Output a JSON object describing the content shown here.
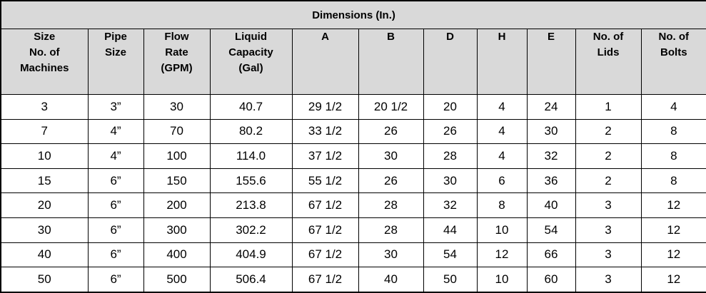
{
  "table": {
    "title": "Dimensions (In.)",
    "columns": [
      "Size\nNo. of\nMachines",
      "Pipe\nSize",
      "Flow\nRate\n(GPM)",
      "Liquid\nCapacity\n(Gal)",
      "A",
      "B",
      "D",
      "H",
      "E",
      "No. of\nLids",
      "No. of\nBolts"
    ],
    "rows": [
      [
        "3",
        "3”",
        "30",
        "40.7",
        "29 1/2",
        "20 1/2",
        "20",
        "4",
        "24",
        "1",
        "4"
      ],
      [
        "7",
        "4”",
        "70",
        "80.2",
        "33 1/2",
        "26",
        "26",
        "4",
        "30",
        "2",
        "8"
      ],
      [
        "10",
        "4”",
        "100",
        "114.0",
        "37 1/2",
        "30",
        "28",
        "4",
        "32",
        "2",
        "8"
      ],
      [
        "15",
        "6”",
        "150",
        "155.6",
        "55 1/2",
        "26",
        "30",
        "6",
        "36",
        "2",
        "8"
      ],
      [
        "20",
        "6”",
        "200",
        "213.8",
        "67 1/2",
        "28",
        "32",
        "8",
        "40",
        "3",
        "12"
      ],
      [
        "30",
        "6”",
        "300",
        "302.2",
        "67 1/2",
        "28",
        "44",
        "10",
        "54",
        "3",
        "12"
      ],
      [
        "40",
        "6”",
        "400",
        "404.9",
        "67 1/2",
        "30",
        "54",
        "12",
        "66",
        "3",
        "12"
      ],
      [
        "50",
        "6”",
        "500",
        "506.4",
        "67 1/2",
        "40",
        "50",
        "10",
        "60",
        "3",
        "12"
      ]
    ],
    "colors": {
      "header_bg": "#d9d9d9",
      "row_bg": "#ffffff",
      "border": "#000000",
      "text": "#000000"
    }
  }
}
